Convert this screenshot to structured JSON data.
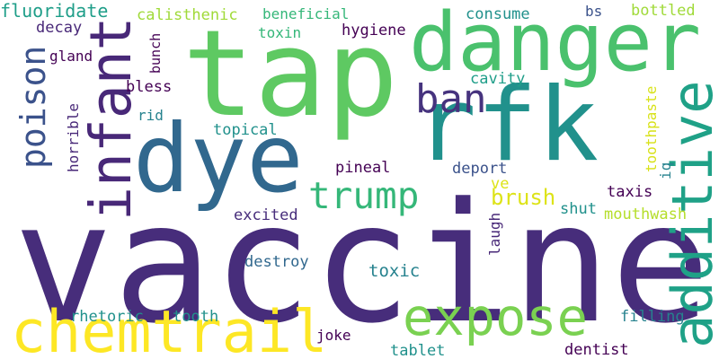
{
  "words": [
    "vaccine",
    "tap",
    "rfk",
    "danger",
    "dye",
    "infant",
    "poison",
    "additive",
    "ban",
    "trump",
    "expose",
    "chemtrail",
    "brush",
    "toxic",
    "fluoridate",
    "decay",
    "gland",
    "bless",
    "rid",
    "topical",
    "horrible",
    "calisthenic",
    "beneficial",
    "toxin",
    "bunch",
    "hygiene",
    "consume",
    "bs",
    "bottled",
    "cavity",
    "toothpaste",
    "iq",
    "pineal",
    "deport",
    "ve",
    "taxis",
    "shut",
    "mouthwash",
    "excited",
    "laugh",
    "destroy",
    "rhetoric",
    "tooth",
    "joke",
    "filling",
    "tablet",
    "dentist"
  ]
}
